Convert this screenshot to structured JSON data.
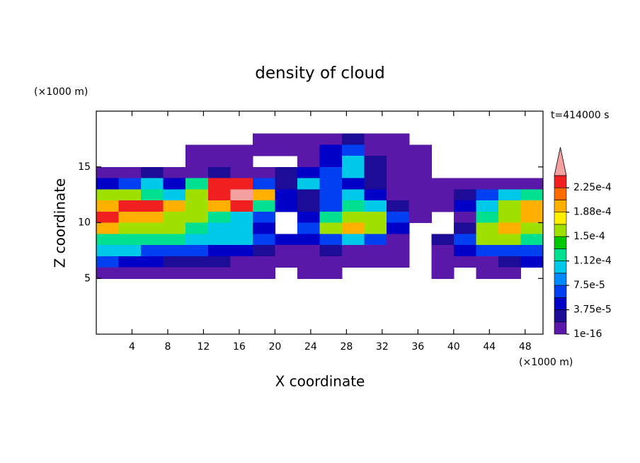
{
  "chart_data": {
    "type": "contour",
    "title": "density of cloud",
    "annotation": "t=414000 s",
    "x_label": "X coordinate",
    "y_label": "Z coordinate",
    "x_unit": "(×1000 m)",
    "y_unit": "(×1000 m)",
    "xlim": [
      0,
      50
    ],
    "ylim": [
      0,
      20
    ],
    "xticks": [
      4,
      8,
      12,
      16,
      20,
      24,
      28,
      32,
      36,
      40,
      44,
      48
    ],
    "yticks": [
      5,
      10,
      15
    ],
    "x": [
      1.25,
      3.75,
      6.25,
      8.75,
      11.25,
      13.75,
      16.25,
      18.75,
      21.25,
      23.75,
      26.25,
      28.75,
      31.25,
      33.75,
      36.25,
      38.75,
      41.25,
      43.75,
      46.25,
      48.75
    ],
    "z": [
      18.5,
      17.5,
      16.5,
      15.5,
      14.5,
      13.5,
      12.5,
      11.5,
      10.5,
      9.5,
      8.5,
      7.5,
      6.5,
      5.5
    ],
    "values": [
      [
        null,
        null,
        null,
        null,
        null,
        null,
        null,
        null,
        null,
        null,
        null,
        null,
        null,
        null,
        null,
        null,
        null,
        null,
        null,
        null
      ],
      [
        null,
        null,
        null,
        null,
        null,
        null,
        null,
        1e-06,
        1e-06,
        1e-06,
        1e-06,
        2.5e-05,
        1e-06,
        1e-06,
        null,
        null,
        null,
        null,
        null,
        null
      ],
      [
        null,
        null,
        null,
        null,
        1e-06,
        1e-06,
        1e-06,
        1e-06,
        1e-06,
        1e-06,
        4e-05,
        6e-05,
        1e-06,
        1e-06,
        1e-06,
        null,
        null,
        null,
        null,
        null
      ],
      [
        null,
        null,
        null,
        null,
        1e-06,
        1e-06,
        1e-06,
        null,
        null,
        1e-06,
        4e-05,
        0.0001,
        2.5e-05,
        1e-06,
        1e-06,
        null,
        null,
        null,
        null,
        null
      ],
      [
        1e-06,
        1e-06,
        2.5e-05,
        1e-06,
        1e-06,
        2.5e-05,
        1e-06,
        1e-06,
        2.5e-05,
        4e-05,
        6e-05,
        0.0001,
        2.5e-05,
        1e-06,
        1e-06,
        null,
        null,
        null,
        null,
        null
      ],
      [
        4e-05,
        6e-05,
        0.0001,
        4e-05,
        0.00012,
        0.00023,
        0.00023,
        6e-05,
        2.5e-05,
        0.0001,
        6e-05,
        4e-05,
        2.5e-05,
        1e-06,
        1e-06,
        1e-06,
        1e-06,
        1e-06,
        1e-06,
        1e-06
      ],
      [
        0.00016,
        0.00016,
        0.00012,
        0.0001,
        0.00016,
        0.00023,
        0.00025,
        0.00019,
        4e-05,
        2.5e-05,
        6e-05,
        0.0001,
        4e-05,
        1e-06,
        1e-06,
        1e-06,
        2.5e-05,
        6e-05,
        0.0001,
        0.00012
      ],
      [
        0.00019,
        0.00023,
        0.00023,
        0.00019,
        0.00016,
        0.00019,
        0.00023,
        0.00012,
        4e-05,
        2.5e-05,
        6e-05,
        0.00012,
        0.0001,
        2.5e-05,
        1e-06,
        1e-06,
        4e-05,
        0.0001,
        0.00016,
        0.00019
      ],
      [
        0.00023,
        0.00019,
        0.00019,
        0.00016,
        0.00016,
        0.00012,
        0.0001,
        6e-05,
        null,
        4e-05,
        0.00012,
        0.00016,
        0.00016,
        6e-05,
        1e-06,
        null,
        1e-06,
        0.00012,
        0.00016,
        0.00019
      ],
      [
        0.00019,
        0.00016,
        0.00016,
        0.00016,
        0.00012,
        0.0001,
        0.0001,
        4e-05,
        null,
        6e-05,
        0.00016,
        0.00019,
        0.00016,
        4e-05,
        null,
        null,
        2.5e-05,
        0.00016,
        0.00019,
        0.00016
      ],
      [
        0.00012,
        0.00012,
        0.00012,
        0.00012,
        0.0001,
        0.0001,
        0.0001,
        6e-05,
        4e-05,
        4e-05,
        6e-05,
        0.0001,
        6e-05,
        1e-06,
        null,
        2.5e-05,
        6e-05,
        0.00016,
        0.00016,
        0.00012
      ],
      [
        0.0001,
        0.0001,
        6e-05,
        6e-05,
        6e-05,
        4e-05,
        4e-05,
        2.5e-05,
        1e-06,
        1e-06,
        2.5e-05,
        1e-06,
        1e-06,
        1e-06,
        null,
        1e-06,
        4e-05,
        6e-05,
        6e-05,
        6e-05
      ],
      [
        6e-05,
        4e-05,
        4e-05,
        2.5e-05,
        2.5e-05,
        2.5e-05,
        1e-06,
        1e-06,
        1e-06,
        1e-06,
        1e-06,
        1e-06,
        1e-06,
        1e-06,
        null,
        1e-06,
        1e-06,
        1e-06,
        2.5e-05,
        4e-05
      ],
      [
        1e-06,
        1e-06,
        1e-06,
        1e-06,
        1e-06,
        1e-06,
        1e-06,
        1e-06,
        null,
        1e-06,
        1e-06,
        null,
        null,
        null,
        null,
        1e-06,
        null,
        1e-06,
        1e-06,
        null
      ]
    ],
    "levels": [
      1e-16,
      1.875e-05,
      3.75e-05,
      5.625e-05,
      7.5e-05,
      9.375e-05,
      0.0001125,
      0.00013125,
      0.00015,
      0.00016875,
      0.0001875,
      0.00020625,
      0.000225,
      0.00024375
    ],
    "colors": [
      "#5a18a8",
      "#1c0c96",
      "#0000c8",
      "#0040f0",
      "#0088ff",
      "#00c8e8",
      "#00e090",
      "#00c800",
      "#a0e000",
      "#ffee00",
      "#ffb000",
      "#ff6a00",
      "#f02020"
    ],
    "extend_color": "#f4a0a0",
    "colorbar_ticks": [
      {
        "value": 1e-16,
        "label": "1e-16"
      },
      {
        "value": 3.75e-05,
        "label": "3.75e-5"
      },
      {
        "value": 7.5e-05,
        "label": "7.5e-5"
      },
      {
        "value": 0.0001125,
        "label": "1.12e-4"
      },
      {
        "value": 0.00015,
        "label": "1.5e-4"
      },
      {
        "value": 0.0001875,
        "label": "1.88e-4"
      },
      {
        "value": 0.000225,
        "label": "2.25e-4"
      }
    ]
  }
}
